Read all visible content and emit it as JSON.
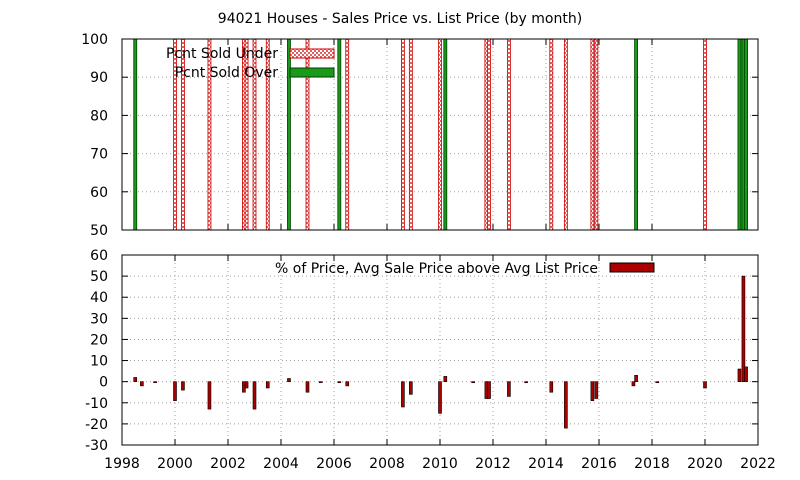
{
  "chart_data": [
    {
      "type": "bar",
      "title": "94021 Houses - Sales Price vs. List Price (by month)",
      "xlim": [
        1998,
        2022
      ],
      "ylim": [
        50,
        100
      ],
      "y_ticks": [
        50,
        60,
        70,
        80,
        90,
        100
      ],
      "grid": true,
      "legend_position": "top-left",
      "colors": {
        "under": "#ffb0b0",
        "under_edge": "#cc0000",
        "over": "#1a9a1a",
        "over_edge": "#004000"
      },
      "series": [
        {
          "name": "Pcnt Sold Under",
          "x": [
            2000.0,
            2000.3,
            2001.3,
            2002.6,
            2002.7,
            2003.0,
            2003.5,
            2005.0,
            2006.5,
            2008.6,
            2008.9,
            2010.0,
            2011.75,
            2011.85,
            2012.6,
            2014.2,
            2014.75,
            2015.75,
            2015.9,
            2020.0
          ],
          "values": [
            100,
            100,
            100,
            100,
            100,
            100,
            100,
            100,
            100,
            100,
            100,
            100,
            100,
            100,
            100,
            100,
            100,
            100,
            100,
            100
          ]
        },
        {
          "name": "Pcnt Sold Over",
          "x": [
            1998.5,
            2004.3,
            2006.2,
            2010.2,
            2017.4,
            2021.3,
            2021.45,
            2021.55
          ],
          "values": [
            100,
            100,
            100,
            100,
            100,
            100,
            100,
            100
          ]
        }
      ]
    },
    {
      "type": "bar",
      "title": "",
      "xlim": [
        1998,
        2022
      ],
      "ylim": [
        -30,
        60
      ],
      "y_ticks": [
        -30,
        -20,
        -10,
        0,
        10,
        20,
        30,
        40,
        50,
        60
      ],
      "x_ticks": [
        1998,
        2000,
        2002,
        2004,
        2006,
        2008,
        2010,
        2012,
        2014,
        2016,
        2018,
        2020,
        2022
      ],
      "grid": true,
      "legend_position": "top-right",
      "colors": {
        "bar": "#aa0000",
        "bar_edge": "#000000"
      },
      "series": [
        {
          "name": "% of Price, Avg Sale Price above Avg List Price",
          "x": [
            1998.5,
            1998.75,
            1999.25,
            2000.0,
            2000.3,
            2001.3,
            2002.6,
            2002.7,
            2003.0,
            2003.5,
            2004.3,
            2005.0,
            2005.5,
            2006.2,
            2006.5,
            2008.6,
            2008.9,
            2010.0,
            2010.2,
            2011.25,
            2011.75,
            2011.85,
            2012.6,
            2013.25,
            2014.2,
            2014.75,
            2015.75,
            2015.9,
            2017.3,
            2017.4,
            2018.2,
            2020.0,
            2021.3,
            2021.45,
            2021.55
          ],
          "values": [
            2,
            -2,
            -0.5,
            -9,
            -4,
            -13,
            -5,
            -3,
            -13,
            -3,
            1.5,
            -5,
            -0.5,
            -0.5,
            -2,
            -12,
            -6,
            -15,
            2.5,
            -0.5,
            -8,
            -8,
            -7,
            -0.5,
            -5,
            -22,
            -9,
            -8,
            -2,
            3,
            -0.5,
            -3,
            6,
            50,
            7
          ]
        }
      ]
    }
  ]
}
